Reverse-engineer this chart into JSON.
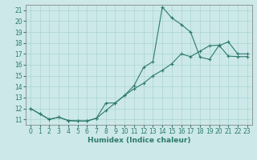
{
  "xlabel": "Humidex (Indice chaleur)",
  "background_color": "#cce8e8",
  "grid_color": "#aad4d4",
  "line_color": "#2d7a6e",
  "xlim": [
    -0.5,
    23.5
  ],
  "ylim": [
    10.5,
    21.5
  ],
  "yticks": [
    11,
    12,
    13,
    14,
    15,
    16,
    17,
    18,
    19,
    20,
    21
  ],
  "xticks": [
    0,
    1,
    2,
    3,
    4,
    5,
    6,
    7,
    8,
    9,
    10,
    11,
    12,
    13,
    14,
    15,
    16,
    17,
    18,
    19,
    20,
    21,
    22,
    23
  ],
  "curve1_x": [
    0,
    1,
    2,
    3,
    4,
    5,
    6,
    7,
    8,
    9,
    10,
    11,
    12,
    13,
    14,
    15,
    16,
    17,
    18,
    19,
    20,
    21,
    22,
    23
  ],
  "curve1_y": [
    12.0,
    11.5,
    11.0,
    11.2,
    10.9,
    10.85,
    10.85,
    11.1,
    11.8,
    12.5,
    13.2,
    14.1,
    15.75,
    16.3,
    21.3,
    20.3,
    19.7,
    19.0,
    16.7,
    16.5,
    17.75,
    18.1,
    17.0,
    17.0
  ],
  "curve2_x": [
    0,
    1,
    2,
    3,
    4,
    5,
    6,
    7,
    8,
    9,
    10,
    11,
    12,
    13,
    14,
    15,
    16,
    17,
    18,
    19,
    20,
    21,
    22,
    23
  ],
  "curve2_y": [
    12.0,
    11.5,
    11.0,
    11.2,
    10.9,
    10.85,
    10.85,
    11.1,
    12.5,
    12.5,
    13.2,
    13.8,
    14.3,
    15.0,
    15.5,
    16.1,
    17.0,
    16.75,
    17.25,
    17.75,
    17.8,
    16.8,
    16.75,
    16.75
  ],
  "tick_fontsize": 5.5,
  "xlabel_fontsize": 6.5
}
